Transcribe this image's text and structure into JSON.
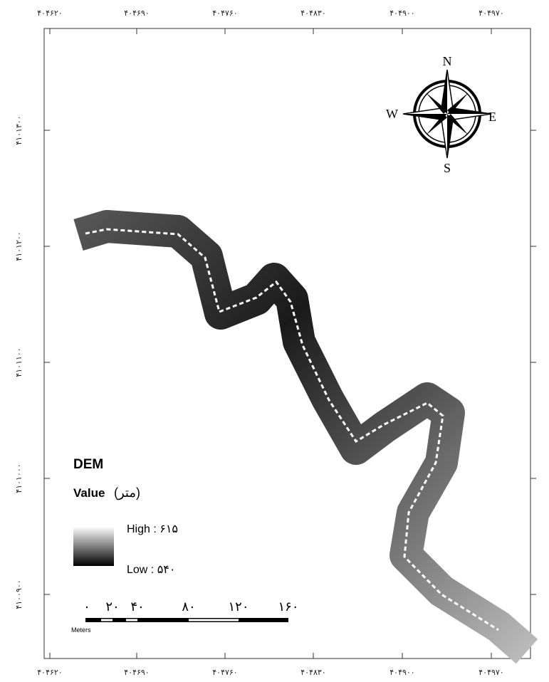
{
  "map": {
    "x_labels_top": [
      "۴۰۴۶۲۰",
      "۴۰۴۶۹۰",
      "۴۰۴۷۶۰",
      "۴۰۴۸۳۰",
      "۴۰۴۹۰۰",
      "۴۰۴۹۷۰"
    ],
    "x_labels_bottom": [
      "۴۰۴۶۲۰",
      "۴۰۴۶۹۰",
      "۴۰۴۷۶۰",
      "۴۰۴۸۳۰",
      "۴۰۴۹۰۰",
      "۴۰۴۹۷۰"
    ],
    "y_labels_left": [
      "۴۱۰۱۳۰۰",
      "۴۱۰۱۲۰۰",
      "۴۱۰۱۱۰۰",
      "۴۱۰۱۰۰۰",
      "۴۱۰۰۹۰۰"
    ],
    "compass": {
      "n": "N",
      "s": "S",
      "e": "E",
      "w": "W"
    },
    "legend": {
      "title": "DEM",
      "field": "Value",
      "unit": "(متر)",
      "high": "High : ۶۱۵",
      "low": "Low : ۵۴۰"
    },
    "scale_bar": {
      "labels": [
        "۰",
        "۲۰",
        "۴۰",
        "۸۰",
        "۱۲۰",
        "۱۶۰"
      ],
      "unit": "Meters"
    }
  }
}
